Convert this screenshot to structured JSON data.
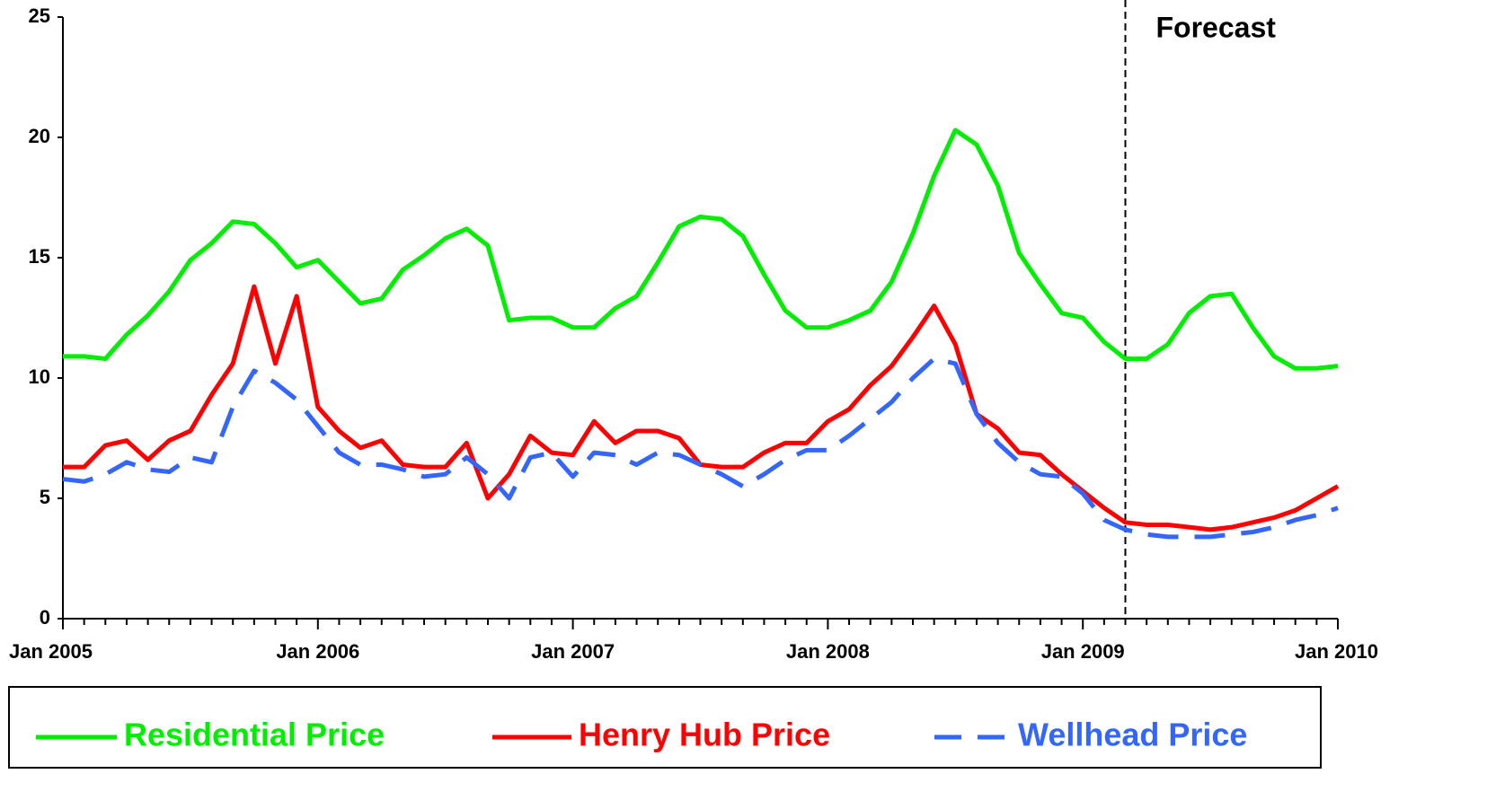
{
  "chart_data": {
    "type": "line",
    "categories": [
      "Jan 2005",
      null,
      null,
      null,
      null,
      null,
      null,
      null,
      null,
      null,
      null,
      null,
      "Jan 2006",
      null,
      null,
      null,
      null,
      null,
      null,
      null,
      null,
      null,
      null,
      null,
      "Jan 2007",
      null,
      null,
      null,
      null,
      null,
      null,
      null,
      null,
      null,
      null,
      null,
      "Jan 2008",
      null,
      null,
      null,
      null,
      null,
      null,
      null,
      null,
      null,
      null,
      null,
      "Jan 2009",
      null,
      null,
      null,
      null,
      null,
      null,
      null,
      null,
      null,
      null,
      null,
      "Jan 2010"
    ],
    "series": [
      {
        "name": "Residential Price",
        "color": "#00ee00",
        "line_style": "solid",
        "values": [
          10.9,
          10.9,
          10.8,
          11.8,
          12.6,
          13.6,
          14.9,
          15.6,
          16.5,
          16.4,
          15.6,
          14.6,
          14.9,
          14.0,
          13.1,
          13.3,
          14.5,
          15.1,
          15.8,
          16.2,
          15.5,
          12.4,
          12.5,
          12.5,
          12.1,
          12.1,
          12.9,
          13.4,
          14.8,
          16.3,
          16.7,
          16.6,
          15.9,
          14.3,
          12.8,
          12.1,
          12.1,
          12.4,
          12.8,
          14.0,
          16.0,
          18.4,
          20.3,
          19.7,
          18.0,
          15.2,
          13.9,
          12.7,
          12.5,
          11.5,
          10.8,
          10.8,
          11.4,
          12.7,
          13.4,
          13.5,
          12.1,
          10.9,
          10.4,
          10.4,
          10.5
        ]
      },
      {
        "name": "Henry Hub Price",
        "color": "#ff0000",
        "line_style": "solid",
        "values": [
          6.3,
          6.3,
          7.2,
          7.4,
          6.6,
          7.4,
          7.8,
          9.3,
          10.6,
          13.8,
          10.6,
          13.4,
          8.8,
          7.8,
          7.1,
          7.4,
          6.4,
          6.3,
          6.3,
          7.3,
          5.0,
          6.0,
          7.6,
          6.9,
          6.8,
          8.2,
          7.3,
          7.8,
          7.8,
          7.5,
          6.4,
          6.3,
          6.3,
          6.9,
          7.3,
          7.3,
          8.2,
          8.7,
          9.7,
          10.5,
          11.7,
          13.0,
          11.4,
          8.5,
          7.9,
          6.9,
          6.8,
          6.0,
          5.3,
          4.6,
          4.0,
          3.9,
          3.9,
          3.8,
          3.7,
          3.8,
          4.0,
          4.2,
          4.5,
          5.0,
          5.5
        ]
      },
      {
        "name": "Wellhead Price",
        "color": "#3366ff",
        "line_style": "dashed",
        "values": [
          5.8,
          5.7,
          6.0,
          6.5,
          6.2,
          6.1,
          6.7,
          6.5,
          8.8,
          10.3,
          9.8,
          9.1,
          8.0,
          6.9,
          6.4,
          6.4,
          6.2,
          5.9,
          6.0,
          6.7,
          6.0,
          5.0,
          6.7,
          6.9,
          5.9,
          6.9,
          6.8,
          6.4,
          6.9,
          6.8,
          6.4,
          6.0,
          5.5,
          6.0,
          6.6,
          7.0,
          7.0,
          7.6,
          8.3,
          9.0,
          10.0,
          10.8,
          10.6,
          8.5,
          7.3,
          6.5,
          6.0,
          5.9,
          5.2,
          4.1,
          3.7,
          3.5,
          3.4,
          3.4,
          3.4,
          3.5,
          3.6,
          3.8,
          4.1,
          4.3,
          4.6
        ]
      }
    ],
    "ylim": [
      0,
      25
    ],
    "yticks": [
      0,
      5,
      10,
      15,
      20,
      25
    ],
    "annotation": {
      "text": "Forecast",
      "x": 50
    },
    "legend": "bottom"
  }
}
